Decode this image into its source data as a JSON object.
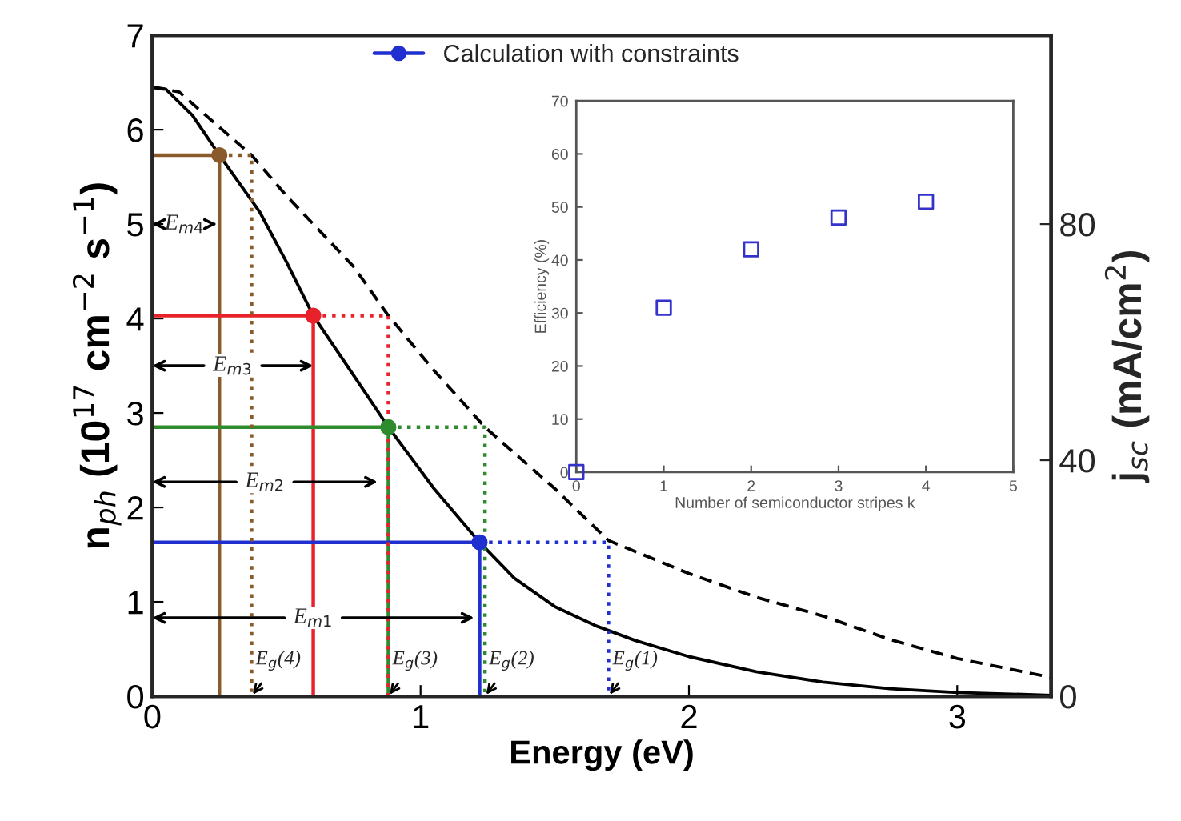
{
  "chart_data": [
    {
      "type": "line",
      "xlabel": "Energy (eV)",
      "ylabel": "n$_{ph}$ (10$^{17}$ cm$^{−2}$ s$^{−1}$)",
      "y2label": "j$_{sc}$ (mA/cm$^{2}$)",
      "xlim": [
        0,
        3.35
      ],
      "xticks": [
        0,
        1,
        2,
        3
      ],
      "ylim": [
        0,
        7
      ],
      "yticks": [
        0,
        1,
        2,
        3,
        4,
        5,
        6,
        7
      ],
      "y2lim": [
        0,
        112
      ],
      "y2ticks": [
        0,
        40,
        80
      ],
      "grid": false,
      "legend": "top",
      "series": [
        {
          "type": "line",
          "color": "#000000",
          "line_style": "solid",
          "x": [
            0,
            0.05,
            0.15,
            0.25,
            0.4,
            0.5,
            0.6,
            0.75,
            0.88,
            1.05,
            1.22,
            1.35,
            1.5,
            1.65,
            1.8,
            2.0,
            2.25,
            2.5,
            2.75,
            3.0,
            3.35
          ],
          "values": [
            6.45,
            6.43,
            6.15,
            5.73,
            5.13,
            4.6,
            4.03,
            3.4,
            2.85,
            2.2,
            1.63,
            1.25,
            0.95,
            0.75,
            0.59,
            0.42,
            0.26,
            0.15,
            0.08,
            0.04,
            0.01
          ]
        },
        {
          "type": "line",
          "color": "#000000",
          "line_style": "dashed",
          "x": [
            0,
            0.1,
            0.2,
            0.37,
            0.5,
            0.6,
            0.75,
            0.88,
            1.05,
            1.24,
            1.4,
            1.5,
            1.7,
            2.0,
            2.25,
            2.5,
            2.75,
            3.0,
            3.35
          ],
          "values": [
            6.45,
            6.4,
            6.15,
            5.73,
            5.3,
            5.0,
            4.55,
            4.03,
            3.45,
            2.85,
            2.45,
            2.2,
            1.65,
            1.3,
            1.05,
            0.85,
            0.6,
            0.4,
            0.2
          ]
        },
        {
          "type": "line",
          "color": "#8b5a2b",
          "line_style": "solid",
          "x": [
            0,
            0.25,
            0.25
          ],
          "values": [
            5.73,
            5.73,
            0
          ]
        },
        {
          "type": "line",
          "color": "#e8212a",
          "line_style": "solid",
          "x": [
            0,
            0.6,
            0.6
          ],
          "values": [
            4.03,
            4.03,
            0
          ]
        },
        {
          "type": "line",
          "color": "#2e8b2e",
          "line_style": "solid",
          "x": [
            0,
            0.88,
            0.88
          ],
          "values": [
            2.85,
            2.85,
            0
          ]
        },
        {
          "type": "line",
          "color": "#1f2fd0",
          "line_style": "solid",
          "x": [
            0,
            1.22,
            1.22
          ],
          "values": [
            1.63,
            1.63,
            0
          ]
        },
        {
          "type": "line",
          "color": "#8b5a2b",
          "line_style": "dotted",
          "x": [
            0.25,
            0.37,
            0.37
          ],
          "values": [
            5.73,
            5.73,
            0
          ]
        },
        {
          "type": "line",
          "color": "#e8212a",
          "line_style": "dotted",
          "x": [
            0.6,
            0.88,
            0.88
          ],
          "values": [
            4.03,
            4.03,
            0
          ]
        },
        {
          "type": "line",
          "color": "#2e8b2e",
          "line_style": "dotted",
          "x": [
            0.88,
            1.24,
            1.24
          ],
          "values": [
            2.85,
            2.85,
            0
          ]
        },
        {
          "type": "line",
          "color": "#1f2fd0",
          "line_style": "dotted",
          "x": [
            1.22,
            1.7,
            1.7
          ],
          "values": [
            1.63,
            1.63,
            0
          ]
        },
        {
          "type": "scatter",
          "marker": "circle",
          "colors": [
            "#8b5a2b",
            "#e8212a",
            "#2e8b2e"
          ],
          "x": [
            0.25,
            0.6,
            0.88
          ],
          "values": [
            5.73,
            4.03,
            2.85
          ]
        },
        {
          "type": "scatter",
          "name": "Calculation with constraints",
          "marker": "circle",
          "color": "#1f2fd0",
          "x": [
            1.22
          ],
          "values": [
            1.63
          ]
        }
      ],
      "annotations": [
        {
          "text": "E$_{m4}$",
          "x": 0.12,
          "y": 5.0
        },
        {
          "text": "E$_{m3}$",
          "x": 0.3,
          "y": 3.5
        },
        {
          "text": "E$_{m2}$",
          "x": 0.42,
          "y": 2.27
        },
        {
          "text": "E$_{m1}$",
          "x": 0.6,
          "y": 0.83
        },
        {
          "text": "E$_{g}$(4)",
          "x": 0.37,
          "y": 0
        },
        {
          "text": "E$_{g}$(3)",
          "x": 0.88,
          "y": 0
        },
        {
          "text": "E$_{g}$(2)",
          "x": 1.24,
          "y": 0
        },
        {
          "text": "E$_{g}$(1)",
          "x": 1.7,
          "y": 0
        }
      ]
    },
    {
      "type": "scatter",
      "xlabel": "Number of semiconductor stripes k",
      "ylabel": "Efficiency (%)",
      "xlim": [
        0,
        5
      ],
      "xticks": [
        0,
        1,
        2,
        3,
        4,
        5
      ],
      "ylim": [
        0,
        70
      ],
      "yticks": [
        0,
        10,
        20,
        30,
        40,
        50,
        60,
        70
      ],
      "grid": false,
      "marker": "square",
      "series": [
        {
          "color": "#3333cc",
          "x": [
            0,
            1,
            2,
            3,
            4
          ],
          "values": [
            0,
            31,
            42,
            48,
            51
          ]
        }
      ]
    }
  ]
}
